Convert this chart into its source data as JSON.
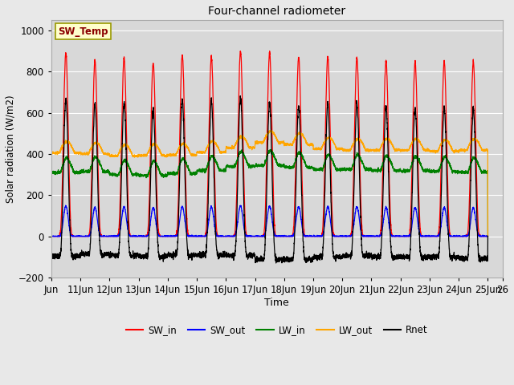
{
  "title": "Four-channel radiometer",
  "xlabel": "Time",
  "ylabel": "Solar radiation (W/m2)",
  "ylim": [
    -200,
    1050
  ],
  "background_color": "#e8e8e8",
  "plot_bg_color": "#d8d8d8",
  "grid_color": "white",
  "sw_temp_label": "SW_Temp",
  "sw_temp_box_color": "#ffffcc",
  "sw_temp_text_color": "#8b0000",
  "legend_entries": [
    "SW_in",
    "SW_out",
    "LW_in",
    "LW_out",
    "Rnet"
  ],
  "line_colors": [
    "red",
    "blue",
    "green",
    "orange",
    "black"
  ],
  "xtick_labels": [
    "Jun",
    "11Jun",
    "12Jun",
    "13Jun",
    "14Jun",
    "15Jun",
    "16Jun",
    "17Jun",
    "18Jun",
    "19Jun",
    "20Jun",
    "21Jun",
    "22Jun",
    "23Jun",
    "24Jun",
    "25Jun",
    "26"
  ],
  "ytick_vals": [
    -200,
    0,
    200,
    400,
    600,
    800,
    1000
  ],
  "n_days": 15,
  "sw_in_peaks": [
    890,
    850,
    870,
    840,
    880,
    870,
    900,
    890,
    870,
    870,
    865,
    850,
    845,
    845,
    845
  ],
  "lw_in_bases": [
    310,
    315,
    300,
    295,
    305,
    320,
    340,
    345,
    335,
    325,
    325,
    320,
    318,
    315,
    312
  ],
  "lw_out_bases": [
    405,
    400,
    390,
    392,
    395,
    408,
    430,
    455,
    445,
    425,
    418,
    418,
    418,
    413,
    418
  ],
  "rnet_night": -85,
  "day_start": 0.26,
  "day_end": 0.74,
  "sw_sharpness": 3.5
}
